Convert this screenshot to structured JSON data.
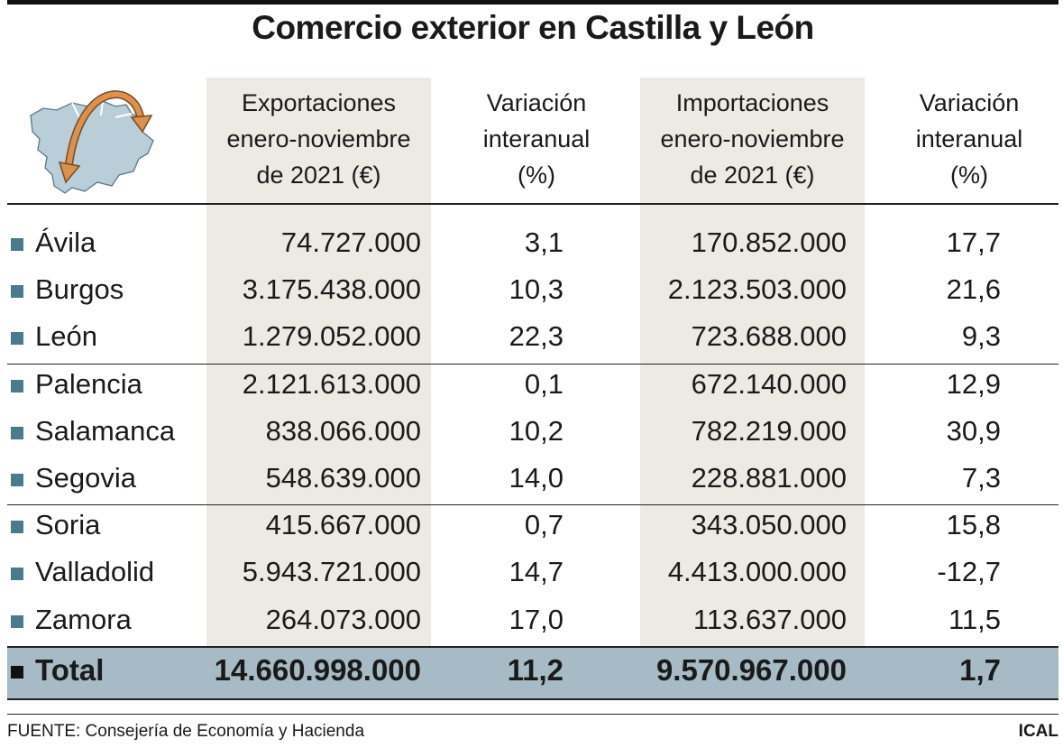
{
  "title": "Comercio exterior en Castilla y León",
  "colors": {
    "band": "#ebebe3",
    "total_band": "#a7bbc6",
    "bullet": "#4a7a8c",
    "map_fill": "#b9ced8",
    "arrow": "#d9924f"
  },
  "headers": {
    "exports": [
      "Exportaciones",
      "enero-noviembre",
      "de 2021 (€)"
    ],
    "var_exports": [
      "Variación",
      "interanual",
      "(%)"
    ],
    "imports": [
      "Importaciones",
      "enero-noviembre",
      "de 2021 (€)"
    ],
    "var_imports": [
      "Variación",
      "interanual",
      "(%)"
    ]
  },
  "chart_data": {
    "type": "table",
    "title": "Comercio exterior en Castilla y León",
    "columns": [
      "",
      "Exportaciones enero-noviembre de 2021 (€)",
      "Variación interanual (%)",
      "Importaciones enero-noviembre de 2021 (€)",
      "Variación interanual (%)"
    ],
    "rows": [
      {
        "name": "Ávila",
        "exports": "74.727.000",
        "var_exports": "3,1",
        "imports": "170.852.000",
        "var_imports": "17,7"
      },
      {
        "name": "Burgos",
        "exports": "3.175.438.000",
        "var_exports": "10,3",
        "imports": "2.123.503.000",
        "var_imports": "21,6"
      },
      {
        "name": "León",
        "exports": "1.279.052.000",
        "var_exports": "22,3",
        "imports": "723.688.000",
        "var_imports": "9,3"
      },
      {
        "name": "Palencia",
        "exports": "2.121.613.000",
        "var_exports": "0,1",
        "imports": "672.140.000",
        "var_imports": "12,9"
      },
      {
        "name": "Salamanca",
        "exports": "838.066.000",
        "var_exports": "10,2",
        "imports": "782.219.000",
        "var_imports": "30,9"
      },
      {
        "name": "Segovia",
        "exports": "548.639.000",
        "var_exports": "14,0",
        "imports": "228.881.000",
        "var_imports": "7,3"
      },
      {
        "name": "Soria",
        "exports": "415.667.000",
        "var_exports": "0,7",
        "imports": "343.050.000",
        "var_imports": "15,8"
      },
      {
        "name": "Valladolid",
        "exports": "5.943.721.000",
        "var_exports": "14,7",
        "imports": "4.413.000.000",
        "var_imports": "-12,7"
      },
      {
        "name": "Zamora",
        "exports": "264.073.000",
        "var_exports": "17,0",
        "imports": "113.637.000",
        "var_imports": "11,5"
      }
    ],
    "total": {
      "name": "Total",
      "exports": "14.660.998.000",
      "var_exports": "11,2",
      "imports": "9.570.967.000",
      "var_imports": "1,7"
    }
  },
  "source": "FUENTE: Consejería de Economía y Hacienda",
  "credit": "ICAL",
  "map_icon": "castilla-y-leon-map-icon"
}
